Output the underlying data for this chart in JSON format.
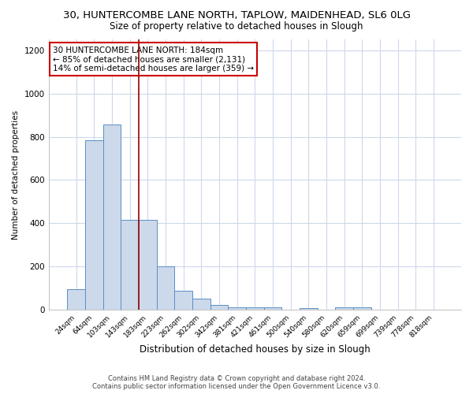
{
  "title1": "30, HUNTERCOMBE LANE NORTH, TAPLOW, MAIDENHEAD, SL6 0LG",
  "title2": "Size of property relative to detached houses in Slough",
  "xlabel": "Distribution of detached houses by size in Slough",
  "ylabel": "Number of detached properties",
  "bar_color": "#ccd9ea",
  "bar_edge_color": "#5b8ec4",
  "categories": [
    "24sqm",
    "64sqm",
    "103sqm",
    "143sqm",
    "183sqm",
    "223sqm",
    "262sqm",
    "302sqm",
    "342sqm",
    "381sqm",
    "421sqm",
    "461sqm",
    "500sqm",
    "540sqm",
    "580sqm",
    "620sqm",
    "659sqm",
    "699sqm",
    "739sqm",
    "778sqm",
    "818sqm"
  ],
  "values": [
    95,
    783,
    858,
    415,
    415,
    200,
    88,
    52,
    22,
    13,
    10,
    10,
    0,
    7,
    0,
    10,
    10,
    0,
    0,
    0,
    0
  ],
  "ylim": [
    0,
    1250
  ],
  "yticks": [
    0,
    200,
    400,
    600,
    800,
    1000,
    1200
  ],
  "vline_x_idx": 4,
  "vline_color": "#990000",
  "annotation_text": "30 HUNTERCOMBE LANE NORTH: 184sqm\n← 85% of detached houses are smaller (2,131)\n14% of semi-detached houses are larger (359) →",
  "annotation_box_color": "#ffffff",
  "annotation_box_edge": "#cc0000",
  "footer": "Contains HM Land Registry data © Crown copyright and database right 2024.\nContains public sector information licensed under the Open Government Licence v3.0.",
  "background_color": "#ffffff",
  "plot_bg_color": "#ffffff",
  "grid_color": "#ccd9ea",
  "title_fontsize": 9.5,
  "subtitle_fontsize": 8.5
}
